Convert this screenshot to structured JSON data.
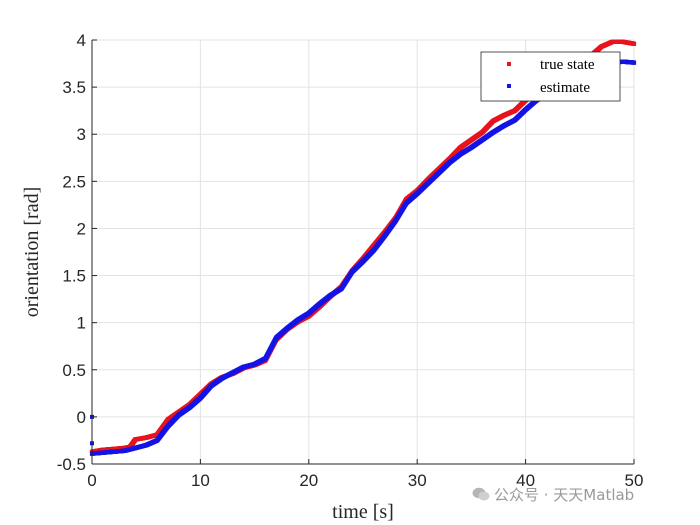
{
  "chart_data": {
    "type": "scatter",
    "title": "",
    "xlabel": "time [s]",
    "ylabel": "orientation [rad]",
    "xlim": [
      0,
      50
    ],
    "ylim": [
      -0.5,
      4
    ],
    "xticks": [
      "0",
      "10",
      "20",
      "30",
      "40",
      "50"
    ],
    "yticks": [
      "-0.5",
      "0",
      "0.5",
      "1",
      "1.5",
      "2",
      "2.5",
      "3",
      "3.5",
      "4"
    ],
    "grid": true,
    "legend_position": "top-right",
    "series": [
      {
        "name": "true state",
        "color": "#e8141e",
        "x": [
          0,
          1,
          2,
          3,
          3.5,
          4,
          5,
          6,
          7,
          8,
          9,
          10,
          11,
          12,
          13,
          14,
          15,
          16,
          17,
          18,
          19,
          20,
          21,
          22,
          23,
          24,
          25,
          26,
          27,
          28,
          29,
          30,
          31,
          32,
          33,
          34,
          35,
          36,
          37,
          38,
          39,
          40,
          41,
          42,
          43,
          44,
          45,
          46,
          47,
          48,
          49,
          50
        ],
        "y": [
          -0.37,
          -0.35,
          -0.34,
          -0.33,
          -0.32,
          -0.24,
          -0.22,
          -0.19,
          -0.03,
          0.05,
          0.13,
          0.24,
          0.35,
          0.42,
          0.46,
          0.52,
          0.55,
          0.6,
          0.82,
          0.93,
          1.01,
          1.07,
          1.17,
          1.28,
          1.38,
          1.55,
          1.68,
          1.82,
          1.96,
          2.11,
          2.31,
          2.4,
          2.52,
          2.63,
          2.74,
          2.86,
          2.94,
          3.02,
          3.14,
          3.2,
          3.25,
          3.36,
          3.44,
          3.52,
          3.6,
          3.68,
          3.75,
          3.83,
          3.93,
          3.98,
          3.98,
          3.96
        ]
      },
      {
        "name": "estimate",
        "color": "#1414e6",
        "x": [
          0,
          1,
          2,
          3,
          4,
          5,
          6,
          7,
          8,
          9,
          10,
          11,
          12,
          13,
          14,
          15,
          16,
          17,
          18,
          19,
          20,
          21,
          22,
          23,
          24,
          25,
          26,
          27,
          28,
          29,
          30,
          31,
          32,
          33,
          34,
          35,
          36,
          37,
          38,
          39,
          40,
          41,
          42,
          43,
          44,
          45,
          46,
          47,
          48,
          49,
          50
        ],
        "y": [
          -0.39,
          -0.38,
          -0.37,
          -0.36,
          -0.33,
          -0.3,
          -0.25,
          -0.1,
          0.02,
          0.1,
          0.2,
          0.33,
          0.41,
          0.47,
          0.53,
          0.56,
          0.62,
          0.84,
          0.94,
          1.03,
          1.1,
          1.2,
          1.29,
          1.36,
          1.54,
          1.65,
          1.77,
          1.92,
          2.08,
          2.27,
          2.37,
          2.48,
          2.59,
          2.7,
          2.79,
          2.86,
          2.94,
          3.02,
          3.09,
          3.15,
          3.26,
          3.36,
          3.42,
          3.48,
          3.55,
          3.62,
          3.68,
          3.72,
          3.76,
          3.77,
          3.76
        ],
        "extra_points": [
          {
            "x": 0,
            "y": 0
          },
          {
            "x": 0,
            "y": -0.28
          }
        ]
      }
    ]
  },
  "watermark": "公众号 · 天天Matlab"
}
